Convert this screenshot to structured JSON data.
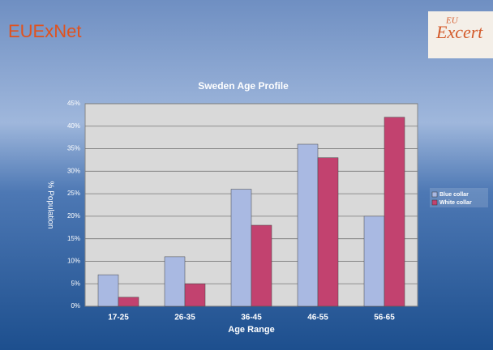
{
  "header": {
    "title": "EUExNet",
    "logo": {
      "super": "EU",
      "text": "Excert"
    }
  },
  "chart_data": {
    "type": "bar",
    "title": "Sweden Age Profile",
    "x_label": "Age Range",
    "y_label": "% Population",
    "categories": [
      "17-25",
      "26-35",
      "36-45",
      "46-55",
      "56-65"
    ],
    "series": [
      {
        "name": "Blue collar",
        "color": "#a9b9e2",
        "values": [
          7,
          11,
          26,
          36,
          20
        ]
      },
      {
        "name": "White collar",
        "color": "#c2426f",
        "values": [
          2,
          5,
          18,
          33,
          42
        ]
      }
    ],
    "ylim": [
      0,
      45
    ],
    "yticks": [
      {
        "value": 0,
        "label": "0%"
      },
      {
        "value": 5,
        "label": "5%"
      },
      {
        "value": 10,
        "label": "10%"
      },
      {
        "value": 15,
        "label": "15%"
      },
      {
        "value": 20,
        "label": "20%"
      },
      {
        "value": 25,
        "label": "25%"
      },
      {
        "value": 30,
        "label": "30%"
      },
      {
        "value": 35,
        "label": "35%"
      },
      {
        "value": 40,
        "label": "40%"
      },
      {
        "value": 45,
        "label": "45%"
      }
    ],
    "grid": true,
    "legend": "right"
  }
}
